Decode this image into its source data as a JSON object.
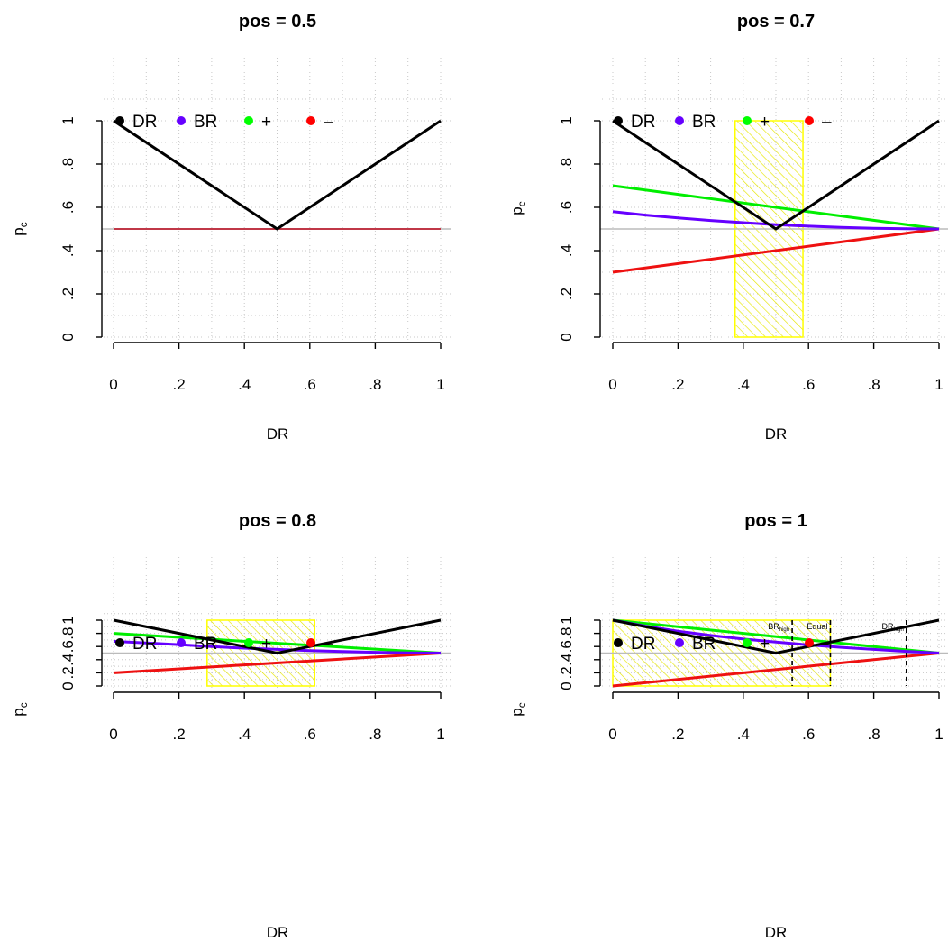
{
  "chart_data": [
    {
      "type": "line",
      "title": "pos = 0.5",
      "xlabel": "DR",
      "ylabel": {
        "main": "p",
        "sub": "c"
      },
      "xlim": [
        0,
        1
      ],
      "ylim": [
        0,
        1.15
      ],
      "xticks": [
        0,
        0.2,
        0.4,
        0.6,
        0.8,
        1
      ],
      "xtick_labels": [
        "0",
        ".2",
        ".4",
        ".6",
        ".8",
        "1"
      ],
      "yticks": [
        0,
        0.2,
        0.4,
        0.6,
        0.8,
        1
      ],
      "ytick_labels": [
        "0",
        ".2",
        ".4",
        ".6",
        ".8",
        "1"
      ],
      "grid": true,
      "reference_line": 0.5,
      "legend": {
        "placement": "top-left",
        "entries": [
          {
            "label": "DR",
            "color": "#000000"
          },
          {
            "label": "BR",
            "color": "#6600ff"
          },
          {
            "label": "+",
            "color": "#00ff00"
          },
          {
            "label": "–",
            "color": "#ff0000"
          }
        ]
      },
      "series": [
        {
          "name": "+",
          "color": "#00ff00",
          "x": [
            0,
            1
          ],
          "y": [
            0.5,
            0.5
          ]
        },
        {
          "name": "BR",
          "color": "#6600ff",
          "x": [
            0,
            1
          ],
          "y": [
            0.5,
            0.5
          ]
        },
        {
          "name": "–",
          "color": "#dd2222",
          "x": [
            0,
            1
          ],
          "y": [
            0.5,
            0.5
          ]
        },
        {
          "name": "DR",
          "color": "#000000",
          "x": [
            0,
            0.5,
            1
          ],
          "y": [
            1,
            0.5,
            1
          ]
        }
      ],
      "shaded_region": null,
      "vlines": []
    },
    {
      "type": "line",
      "title": "pos = 0.7",
      "xlabel": "DR",
      "ylabel": {
        "main": "p",
        "sub": "c"
      },
      "xlim": [
        0,
        1
      ],
      "ylim": [
        0,
        1.15
      ],
      "xticks": [
        0,
        0.2,
        0.4,
        0.6,
        0.8,
        1
      ],
      "xtick_labels": [
        "0",
        ".2",
        ".4",
        ".6",
        ".8",
        "1"
      ],
      "yticks": [
        0,
        0.2,
        0.4,
        0.6,
        0.8,
        1
      ],
      "ytick_labels": [
        "0",
        ".2",
        ".4",
        ".6",
        ".8",
        "1"
      ],
      "grid": true,
      "reference_line": 0.5,
      "legend": {
        "placement": "top-left",
        "entries": [
          {
            "label": "DR",
            "color": "#000000"
          },
          {
            "label": "BR",
            "color": "#6600ff"
          },
          {
            "label": "+",
            "color": "#00ff00"
          },
          {
            "label": "–",
            "color": "#ff0000"
          }
        ]
      },
      "series": [
        {
          "name": "–",
          "color": "#ee1111",
          "x": [
            0,
            1
          ],
          "y": [
            0.3,
            0.5
          ]
        },
        {
          "name": "+",
          "color": "#00ee00",
          "x": [
            0,
            1
          ],
          "y": [
            0.7,
            0.5
          ]
        },
        {
          "name": "BR",
          "color": "#6600ff",
          "x": [
            0,
            0.1,
            0.2,
            0.3,
            0.4,
            0.5,
            0.6,
            0.7,
            0.8,
            0.9,
            1
          ],
          "y": [
            0.58,
            0.564,
            0.551,
            0.539,
            0.529,
            0.52,
            0.513,
            0.507,
            0.503,
            0.501,
            0.5
          ]
        },
        {
          "name": "DR",
          "color": "#000000",
          "x": [
            0,
            0.5,
            1
          ],
          "y": [
            1,
            0.5,
            1
          ]
        }
      ],
      "shaded_region": {
        "x": [
          0.375,
          0.583
        ],
        "y": [
          0,
          1
        ],
        "color": "#ffff00"
      },
      "vlines": []
    },
    {
      "type": "line",
      "title": "pos = 0.8",
      "xlabel": "DR",
      "ylabel": {
        "main": "p",
        "sub": "c"
      },
      "xlim": [
        0,
        1
      ],
      "ylim": [
        0,
        1.15
      ],
      "xticks": [
        0,
        0.2,
        0.4,
        0.6,
        0.8,
        1
      ],
      "xtick_labels": [
        "0",
        ".2",
        ".4",
        ".6",
        ".8",
        "1"
      ],
      "yticks": [
        0,
        0.2,
        0.4,
        0.6,
        0.8,
        1
      ],
      "ytick_labels": [
        "0",
        ".2",
        ".4",
        ".6",
        ".8",
        "1"
      ],
      "grid": true,
      "reference_line": 0.5,
      "legend": {
        "placement": "top-left",
        "entries": [
          {
            "label": "DR",
            "color": "#000000"
          },
          {
            "label": "BR",
            "color": "#6600ff"
          },
          {
            "label": "+",
            "color": "#00ff00"
          },
          {
            "label": "–",
            "color": "#ff0000"
          }
        ]
      },
      "series": [
        {
          "name": "–",
          "color": "#ee1111",
          "x": [
            0,
            1
          ],
          "y": [
            0.2,
            0.5
          ]
        },
        {
          "name": "+",
          "color": "#00ee00",
          "x": [
            0,
            1
          ],
          "y": [
            0.8,
            0.5
          ]
        },
        {
          "name": "BR",
          "color": "#6600ff",
          "x": [
            0,
            0.1,
            0.2,
            0.3,
            0.4,
            0.5,
            0.6,
            0.7,
            0.8,
            0.9,
            1
          ],
          "y": [
            0.68,
            0.653,
            0.629,
            0.598,
            0.576,
            0.556,
            0.539,
            0.524,
            0.512,
            0.503,
            0.5
          ]
        },
        {
          "name": "DR",
          "color": "#000000",
          "x": [
            0,
            0.5,
            1
          ],
          "y": [
            1,
            0.5,
            1
          ]
        }
      ],
      "shaded_region": {
        "x": [
          0.286,
          0.615
        ],
        "y": [
          0,
          1
        ],
        "color": "#ffff00"
      },
      "vlines": []
    },
    {
      "type": "line",
      "title": "pos = 1",
      "xlabel": "DR",
      "ylabel": {
        "main": "p",
        "sub": "c"
      },
      "xlim": [
        0,
        1
      ],
      "ylim": [
        0,
        1.15
      ],
      "xticks": [
        0,
        0.2,
        0.4,
        0.6,
        0.8,
        1
      ],
      "xtick_labels": [
        "0",
        ".2",
        ".4",
        ".6",
        ".8",
        "1"
      ],
      "yticks": [
        0,
        0.2,
        0.4,
        0.6,
        0.8,
        1
      ],
      "ytick_labels": [
        "0",
        ".2",
        ".4",
        ".6",
        ".8",
        "1"
      ],
      "grid": true,
      "reference_line": 0.5,
      "legend": {
        "placement": "top-left",
        "entries": [
          {
            "label": "DR",
            "color": "#000000"
          },
          {
            "label": "BR",
            "color": "#6600ff"
          },
          {
            "label": "+",
            "color": "#00ff00"
          },
          {
            "label": "–",
            "color": "#ff0000"
          }
        ]
      },
      "series": [
        {
          "name": "–",
          "color": "#ee1111",
          "x": [
            0,
            1
          ],
          "y": [
            0,
            0.5
          ]
        },
        {
          "name": "+",
          "color": "#00ee00",
          "x": [
            0,
            1
          ],
          "y": [
            1,
            0.5
          ]
        },
        {
          "name": "BR",
          "color": "#6600ff",
          "x": [
            0,
            0.1,
            0.2,
            0.3,
            0.4,
            0.5,
            0.6,
            0.7,
            0.8,
            0.9,
            1
          ],
          "y": [
            1,
            0.909,
            0.833,
            0.769,
            0.714,
            0.667,
            0.625,
            0.588,
            0.556,
            0.526,
            0.5
          ]
        },
        {
          "name": "DR",
          "color": "#000000",
          "x": [
            0,
            0.5,
            1
          ],
          "y": [
            1,
            0.5,
            1
          ]
        }
      ],
      "shaded_region": {
        "x": [
          0,
          0.667
        ],
        "y": [
          0,
          1
        ],
        "color": "#ffff00"
      },
      "vlines": [
        {
          "x": 0.55,
          "label": "BR",
          "sub": "high"
        },
        {
          "x": 0.667,
          "label": "Equal",
          "sub": ""
        },
        {
          "x": 0.9,
          "label": "DR",
          "sub": "high"
        }
      ]
    }
  ]
}
